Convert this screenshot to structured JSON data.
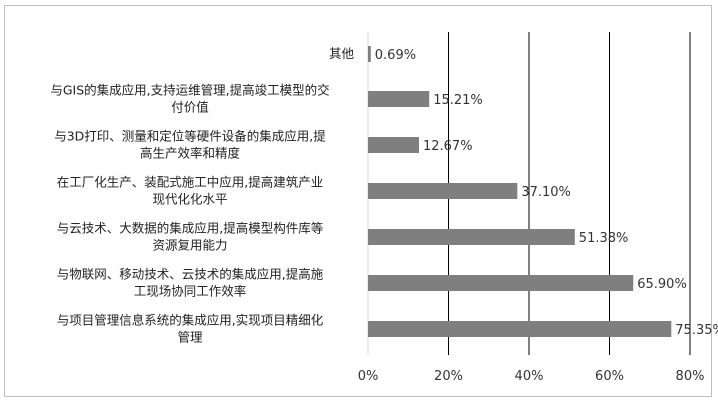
{
  "chart_data": {
    "type": "bar",
    "orientation": "horizontal",
    "categories": [
      [
        "其他"
      ],
      [
        "与GIS的集成应用,支持运维管理,提高竣工模型的交",
        "付价值"
      ],
      [
        "与3D打印、测量和定位等硬件设备的集成应用,提",
        "高生产效率和精度"
      ],
      [
        "在工厂化生产、装配式施工中应用,提高建筑产业",
        "现代化化水平"
      ],
      [
        "与云技术、大数据的集成应用,提高模型构件库等",
        "资源复用能力"
      ],
      [
        "与物联网、移动技术、云技术的集成应用,提高施",
        "工现场协同工作效率"
      ],
      [
        "与项目管理信息系统的集成应用,实现项目精细化",
        "管理"
      ]
    ],
    "values": [
      0.69,
      15.21,
      12.67,
      37.1,
      51.38,
      65.9,
      75.35
    ],
    "value_labels": [
      "0.69%",
      "15.21%",
      "12.67%",
      "37.10%",
      "51.38%",
      "65.90%",
      "75.35%"
    ],
    "xlim": [
      0,
      80
    ],
    "x_ticks": [
      "0%",
      "20%",
      "40%",
      "60%",
      "80%"
    ],
    "grid": true,
    "bar_color": "#7f7f7f",
    "grid_color": "#000000"
  }
}
